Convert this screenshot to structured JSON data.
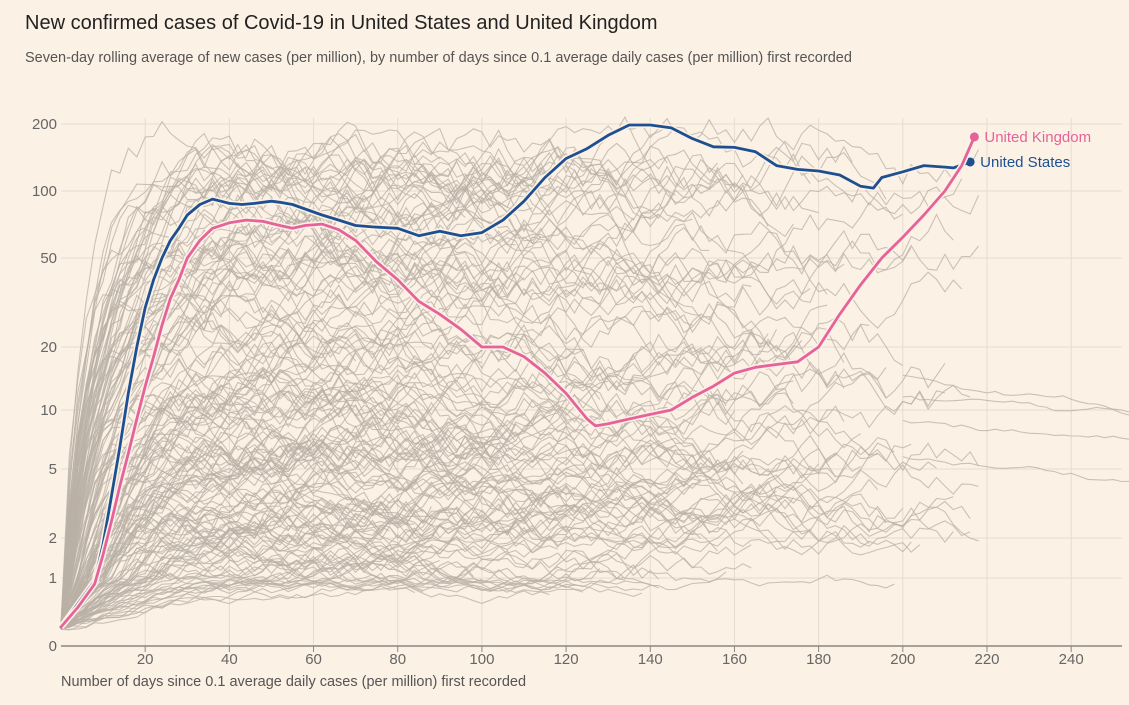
{
  "chart_data": {
    "type": "line",
    "title": "New confirmed cases of Covid-19 in United States and United Kingdom",
    "subtitle": "Seven-day rolling average of new cases (per million), by number of days since 0.1 average daily cases (per million) first recorded",
    "xlabel": "Number of days since 0.1 average daily cases (per million) first recorded",
    "ylabel": "",
    "xlim": [
      0,
      255
    ],
    "ylim": [
      0,
      200
    ],
    "yscale": "log-like",
    "x_ticks": [
      20,
      40,
      60,
      80,
      100,
      120,
      140,
      160,
      180,
      200,
      220,
      240
    ],
    "y_ticks": [
      0,
      1,
      2,
      5,
      10,
      20,
      50,
      100,
      200
    ],
    "y_tick_labels": [
      "0",
      "1",
      "2",
      "5",
      "10",
      "20",
      "50",
      "100",
      "200"
    ],
    "grid": true,
    "background_series_note": "other countries shown as grey lines",
    "series": [
      {
        "name": "United States",
        "color": "#1d4f91",
        "x": [
          0,
          4,
          8,
          10,
          12,
          14,
          16,
          18,
          20,
          22,
          24,
          26,
          28,
          30,
          33,
          36,
          38,
          40,
          43,
          46,
          50,
          52,
          55,
          58,
          62,
          66,
          70,
          74,
          80,
          85,
          90,
          95,
          100,
          105,
          110,
          115,
          120,
          125,
          130,
          135,
          140,
          145,
          150,
          155,
          160,
          165,
          170,
          175,
          180,
          185,
          190,
          193,
          195,
          200,
          205,
          210,
          212,
          216
        ],
        "values": [
          0.1,
          0.35,
          0.9,
          1.8,
          3.5,
          6.5,
          12,
          20,
          30,
          40,
          50,
          60,
          68,
          78,
          87,
          92,
          90,
          88,
          87,
          88,
          90,
          89,
          87,
          83,
          78,
          74,
          70,
          69,
          68,
          63,
          66,
          63,
          65,
          74,
          90,
          115,
          140,
          155,
          178,
          198,
          198,
          192,
          172,
          158,
          157,
          150,
          130,
          125,
          123,
          118,
          105,
          103,
          115,
          122,
          130,
          128,
          127,
          135
        ]
      },
      {
        "name": "United Kingdom",
        "color": "#e5639a",
        "x": [
          0,
          4,
          8,
          10,
          12,
          14,
          16,
          18,
          20,
          22,
          24,
          26,
          28,
          30,
          33,
          36,
          40,
          44,
          48,
          52,
          55,
          58,
          62,
          66,
          70,
          75,
          80,
          85,
          90,
          95,
          100,
          105,
          110,
          115,
          120,
          125,
          127,
          130,
          135,
          140,
          145,
          150,
          155,
          160,
          165,
          170,
          175,
          180,
          185,
          190,
          195,
          200,
          205,
          210,
          214,
          217
        ],
        "values": [
          0.1,
          0.3,
          0.8,
          1.5,
          2.5,
          4,
          6,
          9,
          13,
          18,
          25,
          33,
          40,
          50,
          60,
          68,
          72,
          74,
          73,
          70,
          68,
          70,
          71,
          67,
          60,
          48,
          40,
          32,
          28,
          24,
          20,
          20,
          18,
          15,
          12,
          9,
          8.3,
          8.5,
          9,
          9.5,
          10,
          11.5,
          13,
          15,
          16,
          16.5,
          17,
          20,
          28,
          38,
          50,
          62,
          78,
          100,
          130,
          175
        ]
      }
    ]
  }
}
